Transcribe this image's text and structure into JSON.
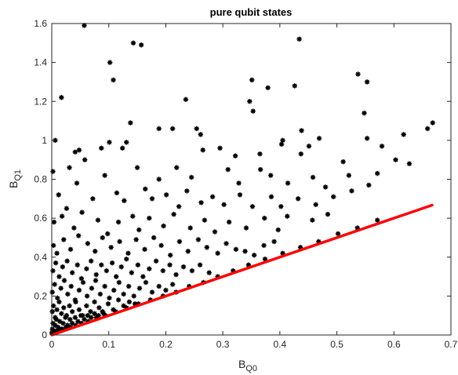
{
  "chart_data": {
    "type": "scatter",
    "title": "pure qubit states",
    "xlabel": {
      "main": "B",
      "sub": "Q0"
    },
    "ylabel": {
      "main": "B",
      "sub": "Q1"
    },
    "xlim": [
      0,
      0.7
    ],
    "ylim": [
      0,
      1.6
    ],
    "xticks": [
      "0",
      "0.1",
      "0.2",
      "0.3",
      "0.4",
      "0.5",
      "0.6",
      "0.7"
    ],
    "yticks": [
      "0",
      "0.2",
      "0.4",
      "0.6",
      "0.8",
      "1",
      "1.2",
      "1.4",
      "1.6"
    ],
    "grid": false,
    "marker_color": "#000000",
    "series": [
      {
        "marker": "asterisk",
        "points": [
          [
            0.057,
            1.59
          ],
          [
            0.143,
            1.5
          ],
          [
            0.157,
            1.49
          ],
          [
            0.434,
            1.52
          ],
          [
            0.102,
            1.4
          ],
          [
            0.108,
            1.31
          ],
          [
            0.351,
            1.31
          ],
          [
            0.379,
            1.27
          ],
          [
            0.426,
            1.28
          ],
          [
            0.537,
            1.34
          ],
          [
            0.553,
            1.3
          ],
          [
            0.017,
            1.22
          ],
          [
            0.235,
            1.21
          ],
          [
            0.347,
            1.2
          ],
          [
            0.353,
            1.15
          ],
          [
            0.548,
            1.14
          ],
          [
            0.668,
            1.09
          ],
          [
            0.006,
            1.0
          ],
          [
            0.138,
            1.09
          ],
          [
            0.188,
            1.06
          ],
          [
            0.212,
            1.06
          ],
          [
            0.254,
            1.06
          ],
          [
            0.261,
            1.03
          ],
          [
            0.438,
            1.05
          ],
          [
            0.405,
            1.0
          ],
          [
            0.469,
            1.01
          ],
          [
            0.553,
            1.01
          ],
          [
            0.617,
            1.03
          ],
          [
            0.659,
            1.06
          ],
          [
            0.041,
            0.94
          ],
          [
            0.048,
            0.95
          ],
          [
            0.087,
            0.96
          ],
          [
            0.101,
            0.99
          ],
          [
            0.124,
            0.96
          ],
          [
            0.131,
            0.99
          ],
          [
            0.265,
            0.95
          ],
          [
            0.295,
            0.96
          ],
          [
            0.322,
            0.92
          ],
          [
            0.365,
            0.93
          ],
          [
            0.403,
            0.98
          ],
          [
            0.437,
            0.93
          ],
          [
            0.451,
            0.97
          ],
          [
            0.579,
            0.97
          ],
          [
            0.603,
            0.9
          ],
          [
            0.627,
            0.88
          ],
          [
            0.002,
            0.84
          ],
          [
            0.031,
            0.86
          ],
          [
            0.058,
            0.9
          ],
          [
            0.093,
            0.82
          ],
          [
            0.15,
            0.86
          ],
          [
            0.188,
            0.8
          ],
          [
            0.219,
            0.86
          ],
          [
            0.245,
            0.81
          ],
          [
            0.309,
            0.85
          ],
          [
            0.328,
            0.78
          ],
          [
            0.366,
            0.85
          ],
          [
            0.384,
            0.82
          ],
          [
            0.414,
            0.78
          ],
          [
            0.458,
            0.81
          ],
          [
            0.48,
            0.76
          ],
          [
            0.521,
            0.82
          ],
          [
            0.571,
            0.83
          ],
          [
            0.511,
            0.89
          ],
          [
            0.012,
            0.72
          ],
          [
            0.026,
            0.65
          ],
          [
            0.044,
            0.78
          ],
          [
            0.072,
            0.7
          ],
          [
            0.114,
            0.73
          ],
          [
            0.127,
            0.69
          ],
          [
            0.164,
            0.75
          ],
          [
            0.176,
            0.7
          ],
          [
            0.201,
            0.72
          ],
          [
            0.223,
            0.66
          ],
          [
            0.237,
            0.74
          ],
          [
            0.262,
            0.68
          ],
          [
            0.282,
            0.71
          ],
          [
            0.302,
            0.67
          ],
          [
            0.33,
            0.72
          ],
          [
            0.352,
            0.66
          ],
          [
            0.385,
            0.71
          ],
          [
            0.402,
            0.66
          ],
          [
            0.432,
            0.7
          ],
          [
            0.463,
            0.67
          ],
          [
            0.494,
            0.71
          ],
          [
            0.526,
            0.74
          ],
          [
            0.556,
            0.77
          ],
          [
            0.004,
            0.58
          ],
          [
            0.018,
            0.61
          ],
          [
            0.039,
            0.55
          ],
          [
            0.053,
            0.63
          ],
          [
            0.081,
            0.59
          ],
          [
            0.098,
            0.52
          ],
          [
            0.117,
            0.58
          ],
          [
            0.142,
            0.61
          ],
          [
            0.153,
            0.54
          ],
          [
            0.171,
            0.6
          ],
          [
            0.196,
            0.56
          ],
          [
            0.214,
            0.62
          ],
          [
            0.243,
            0.55
          ],
          [
            0.268,
            0.59
          ],
          [
            0.286,
            0.53
          ],
          [
            0.311,
            0.58
          ],
          [
            0.341,
            0.55
          ],
          [
            0.373,
            0.6
          ],
          [
            0.397,
            0.54
          ],
          [
            0.413,
            0.61
          ],
          [
            0.457,
            0.59
          ],
          [
            0.484,
            0.62
          ],
          [
            0.003,
            0.46
          ],
          [
            0.009,
            0.42
          ],
          [
            0.021,
            0.49
          ],
          [
            0.033,
            0.44
          ],
          [
            0.047,
            0.51
          ],
          [
            0.063,
            0.47
          ],
          [
            0.076,
            0.43
          ],
          [
            0.089,
            0.5
          ],
          [
            0.104,
            0.45
          ],
          [
            0.119,
            0.48
          ],
          [
            0.134,
            0.42
          ],
          [
            0.148,
            0.49
          ],
          [
            0.163,
            0.44
          ],
          [
            0.179,
            0.5
          ],
          [
            0.192,
            0.46
          ],
          [
            0.208,
            0.41
          ],
          [
            0.224,
            0.48
          ],
          [
            0.239,
            0.43
          ],
          [
            0.257,
            0.49
          ],
          [
            0.272,
            0.45
          ],
          [
            0.291,
            0.42
          ],
          [
            0.306,
            0.47
          ],
          [
            0.323,
            0.44
          ],
          [
            0.339,
            0.43
          ],
          [
            0.355,
            0.41
          ],
          [
            0.372,
            0.46
          ],
          [
            0.39,
            0.48
          ],
          [
            0.002,
            0.33
          ],
          [
            0.007,
            0.37
          ],
          [
            0.013,
            0.3
          ],
          [
            0.019,
            0.35
          ],
          [
            0.027,
            0.38
          ],
          [
            0.036,
            0.32
          ],
          [
            0.045,
            0.36
          ],
          [
            0.052,
            0.29
          ],
          [
            0.061,
            0.34
          ],
          [
            0.069,
            0.38
          ],
          [
            0.078,
            0.31
          ],
          [
            0.087,
            0.36
          ],
          [
            0.096,
            0.33
          ],
          [
            0.106,
            0.37
          ],
          [
            0.113,
            0.3
          ],
          [
            0.122,
            0.35
          ],
          [
            0.131,
            0.39
          ],
          [
            0.14,
            0.32
          ],
          [
            0.151,
            0.36
          ],
          [
            0.16,
            0.3
          ],
          [
            0.171,
            0.34
          ],
          [
            0.183,
            0.38
          ],
          [
            0.195,
            0.33
          ],
          [
            0.207,
            0.36
          ],
          [
            0.218,
            0.31
          ],
          [
            0.231,
            0.35
          ],
          [
            0.246,
            0.33
          ],
          [
            0.26,
            0.36
          ],
          [
            0.276,
            0.32
          ],
          [
            0.001,
            0.22
          ],
          [
            0.005,
            0.26
          ],
          [
            0.01,
            0.19
          ],
          [
            0.016,
            0.24
          ],
          [
            0.022,
            0.28
          ],
          [
            0.028,
            0.21
          ],
          [
            0.034,
            0.25
          ],
          [
            0.041,
            0.18
          ],
          [
            0.048,
            0.23
          ],
          [
            0.055,
            0.27
          ],
          [
            0.062,
            0.2
          ],
          [
            0.07,
            0.24
          ],
          [
            0.077,
            0.28
          ],
          [
            0.085,
            0.21
          ],
          [
            0.093,
            0.25
          ],
          [
            0.101,
            0.19
          ],
          [
            0.109,
            0.23
          ],
          [
            0.118,
            0.27
          ],
          [
            0.126,
            0.21
          ],
          [
            0.135,
            0.25
          ],
          [
            0.144,
            0.2
          ],
          [
            0.154,
            0.24
          ],
          [
            0.165,
            0.27
          ],
          [
            0.176,
            0.22
          ],
          [
            0.188,
            0.25
          ],
          [
            0.2,
            0.23
          ],
          [
            0.212,
            0.26
          ],
          [
            0.001,
            0.12
          ],
          [
            0.003,
            0.15
          ],
          [
            0.006,
            0.09
          ],
          [
            0.009,
            0.13
          ],
          [
            0.013,
            0.17
          ],
          [
            0.017,
            0.11
          ],
          [
            0.021,
            0.14
          ],
          [
            0.026,
            0.1
          ],
          [
            0.031,
            0.15
          ],
          [
            0.036,
            0.12
          ],
          [
            0.042,
            0.17
          ],
          [
            0.048,
            0.13
          ],
          [
            0.054,
            0.1
          ],
          [
            0.061,
            0.15
          ],
          [
            0.068,
            0.12
          ],
          [
            0.075,
            0.17
          ],
          [
            0.083,
            0.14
          ],
          [
            0.091,
            0.11
          ],
          [
            0.099,
            0.16
          ],
          [
            0.108,
            0.13
          ],
          [
            0.117,
            0.18
          ],
          [
            0.126,
            0.15
          ],
          [
            0.136,
            0.17
          ],
          [
            0.146,
            0.16
          ],
          [
            0.001,
            0.03
          ],
          [
            0.002,
            0.06
          ],
          [
            0.004,
            0.02
          ],
          [
            0.006,
            0.05
          ],
          [
            0.008,
            0.08
          ],
          [
            0.011,
            0.04
          ],
          [
            0.014,
            0.07
          ],
          [
            0.017,
            0.03
          ],
          [
            0.02,
            0.06
          ],
          [
            0.024,
            0.09
          ],
          [
            0.028,
            0.05
          ],
          [
            0.032,
            0.08
          ],
          [
            0.036,
            0.06
          ],
          [
            0.041,
            0.09
          ],
          [
            0.046,
            0.07
          ],
          [
            0.051,
            0.1
          ],
          [
            0.057,
            0.08
          ],
          [
            0.063,
            0.1
          ],
          [
            0.069,
            0.09
          ],
          [
            0.075,
            0.11
          ],
          [
            0.082,
            0.1
          ],
          [
            0.089,
            0.12
          ],
          [
            0.0,
            0.01
          ],
          [
            0.003,
            0.01
          ],
          [
            0.007,
            0.02
          ],
          [
            0.012,
            0.02
          ],
          [
            0.018,
            0.03
          ],
          [
            0.025,
            0.04
          ],
          [
            0.033,
            0.04
          ],
          [
            0.042,
            0.05
          ],
          [
            0.052,
            0.06
          ],
          [
            0.064,
            0.07
          ],
          [
            0.078,
            0.09
          ],
          [
            0.094,
            0.1
          ],
          [
            0.112,
            0.12
          ],
          [
            0.131,
            0.14
          ],
          [
            0.152,
            0.16
          ],
          [
            0.173,
            0.18
          ],
          [
            0.195,
            0.2
          ],
          [
            0.218,
            0.22
          ],
          [
            0.241,
            0.25
          ],
          [
            0.266,
            0.27
          ],
          [
            0.291,
            0.3
          ],
          [
            0.318,
            0.33
          ],
          [
            0.345,
            0.36
          ],
          [
            0.374,
            0.39
          ],
          [
            0.405,
            0.42
          ],
          [
            0.436,
            0.45
          ],
          [
            0.468,
            0.48
          ],
          [
            0.502,
            0.52
          ],
          [
            0.536,
            0.55
          ],
          [
            0.571,
            0.59
          ]
        ]
      },
      {
        "marker": "line",
        "color": "#ff0000",
        "x": [
          0,
          0.667
        ],
        "y": [
          0,
          0.667
        ]
      }
    ]
  }
}
